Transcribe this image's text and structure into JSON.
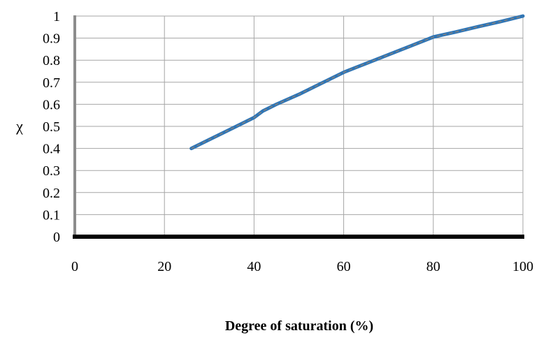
{
  "chart_data": {
    "type": "line",
    "xlabel": "Degree of saturation (%)",
    "ylabel": "χ",
    "xlim": [
      0,
      100
    ],
    "ylim": [
      0,
      1
    ],
    "x_ticks": [
      "0",
      "20",
      "40",
      "60",
      "80",
      "100"
    ],
    "y_ticks": [
      "0",
      "0.1",
      "0.2",
      "0.3",
      "0.4",
      "0.5",
      "0.6",
      "0.7",
      "0.8",
      "0.9",
      "1"
    ],
    "grid": true,
    "legend": "none",
    "series": [
      {
        "x": [
          26,
          30,
          35,
          40,
          42,
          45,
          50,
          55,
          60,
          65,
          70,
          75,
          80,
          85,
          90,
          95,
          100
        ],
        "values": [
          0.4,
          0.44,
          0.49,
          0.54,
          0.57,
          0.6,
          0.645,
          0.695,
          0.745,
          0.785,
          0.825,
          0.865,
          0.905,
          0.928,
          0.952,
          0.975,
          1.0
        ],
        "color": "#2e75b6",
        "dash_color": "#7f7f7f"
      }
    ]
  }
}
